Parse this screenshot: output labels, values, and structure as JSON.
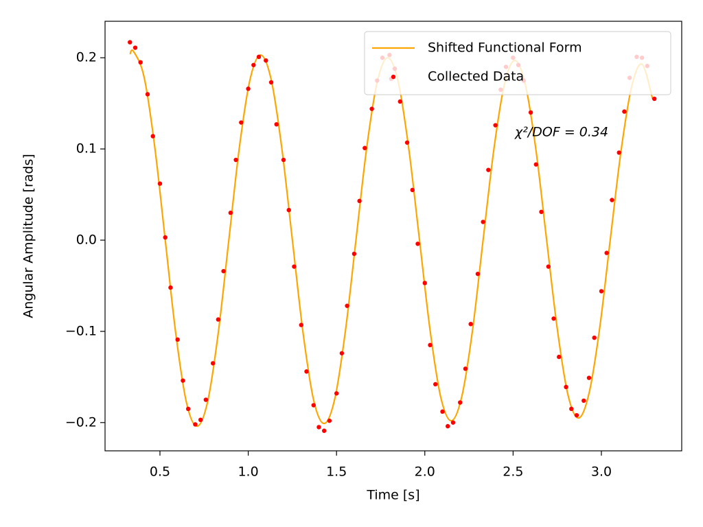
{
  "chart_data": {
    "type": "line",
    "xlabel": "Time [s]",
    "ylabel": "Angular Amplitude [rads]",
    "xlim": [
      0.189,
      3.455
    ],
    "ylim": [
      -0.231,
      0.24
    ],
    "xticks": [
      0.5,
      {
        "value": 1.0,
        "label": "1.0"
      },
      1.5,
      {
        "value": 2.0,
        "label": "2.0"
      },
      2.5,
      {
        "value": 3.0,
        "label": "3.0"
      }
    ],
    "yticks": [
      {
        "value": -0.2,
        "label": "−0.2"
      },
      {
        "value": -0.1,
        "label": "−0.1"
      },
      {
        "value": 0.0,
        "label": "0.0"
      },
      0.1,
      0.2
    ],
    "legend": "upper right",
    "annotation": "χ²/DOF =  0.34",
    "annotation_color": "#ff0000",
    "series": [
      {
        "name": "Shifted Functional Form",
        "type": "line",
        "color": "#ffa500",
        "x": [
          0.33,
          0.35,
          0.41,
          0.47,
          0.53,
          0.59,
          0.65,
          0.71,
          0.77,
          0.83,
          0.89,
          0.95,
          1.01,
          1.07,
          1.13,
          1.19,
          1.25,
          1.31,
          1.37,
          1.43,
          1.49,
          1.55,
          1.61,
          1.67,
          1.73,
          1.79,
          1.85,
          1.91,
          1.97,
          2.03,
          2.09,
          2.15,
          2.21,
          2.27,
          2.33,
          2.39,
          2.45,
          2.51,
          2.57,
          2.63,
          2.69,
          2.75,
          2.81,
          2.87,
          2.93,
          2.99,
          3.05,
          3.11,
          3.17,
          3.23,
          3.29
        ],
        "values": [
          0.204,
          0.207,
          0.179,
          0.103,
          0,
          -0.103,
          -0.178,
          -0.204,
          -0.177,
          -0.102,
          0,
          0.102,
          0.176,
          0.203,
          0.176,
          0.101,
          0,
          -0.101,
          -0.175,
          -0.201,
          -0.174,
          -0.1,
          0,
          0.1,
          0.173,
          0.2,
          0.173,
          0.099,
          0,
          -0.099,
          -0.172,
          -0.198,
          -0.171,
          -0.099,
          0,
          0.098,
          0.17,
          0.197,
          0.17,
          0.098,
          0,
          -0.097,
          -0.169,
          -0.195,
          -0.168,
          -0.097,
          0,
          0.096,
          0.167,
          0.193,
          0.155
        ]
      },
      {
        "name": "Collected Data",
        "type": "scatter",
        "color": "#ff0000",
        "x": [
          0.33,
          0.36,
          0.39,
          0.43,
          0.46,
          0.5,
          0.53,
          0.56,
          0.6,
          0.63,
          0.66,
          0.7,
          0.73,
          0.76,
          0.8,
          0.83,
          0.86,
          0.9,
          0.93,
          0.96,
          1.0,
          1.03,
          1.06,
          1.1,
          1.13,
          1.16,
          1.2,
          1.23,
          1.26,
          1.3,
          1.33,
          1.37,
          1.4,
          1.43,
          1.46,
          1.5,
          1.53,
          1.56,
          1.6,
          1.63,
          1.66,
          1.7,
          1.73,
          1.76,
          1.8,
          1.81,
          1.83,
          1.86,
          1.9,
          1.93,
          1.96,
          2.0,
          2.03,
          2.06,
          2.1,
          2.13,
          2.16,
          2.2,
          2.23,
          2.26,
          2.3,
          2.33,
          2.36,
          2.4,
          2.43,
          2.46,
          2.5,
          2.53,
          2.56,
          2.6,
          2.63,
          2.66,
          2.7,
          2.73,
          2.76,
          2.8,
          2.83,
          2.86,
          2.9,
          2.93,
          2.96,
          3.0,
          3.03,
          3.06,
          3.1,
          3.13,
          3.16,
          3.2,
          3.23,
          3.26,
          3.3
        ],
        "values": [
          0.217,
          0.211,
          0.195,
          0.16,
          0.114,
          0.062,
          0.003,
          -0.052,
          -0.109,
          -0.154,
          -0.185,
          -0.202,
          -0.197,
          -0.175,
          -0.135,
          -0.087,
          -0.034,
          0.03,
          0.088,
          0.129,
          0.166,
          0.192,
          0.201,
          0.197,
          0.173,
          0.127,
          0.088,
          0.033,
          -0.029,
          -0.093,
          -0.144,
          -0.181,
          -0.205,
          -0.209,
          -0.198,
          -0.168,
          -0.124,
          -0.072,
          -0.015,
          0.043,
          0.101,
          0.144,
          0.175,
          0.2,
          0.203,
          0.177,
          0.188,
          0.152,
          0.107,
          0.055,
          -0.004,
          -0.047,
          -0.115,
          -0.158,
          -0.188,
          -0.204,
          -0.2,
          -0.178,
          -0.141,
          -0.092,
          -0.037,
          0.02,
          0.077,
          0.126,
          0.165,
          0.19,
          0.2,
          0.192,
          0.175,
          0.14,
          0.083,
          0.031,
          -0.029,
          -0.086,
          -0.128,
          -0.161,
          -0.185,
          -0.192,
          -0.176,
          -0.151,
          -0.107,
          -0.056,
          -0.014,
          0.044,
          0.096,
          0.141,
          0.178,
          0.201,
          0.2,
          0.191,
          0.155
        ]
      }
    ]
  }
}
